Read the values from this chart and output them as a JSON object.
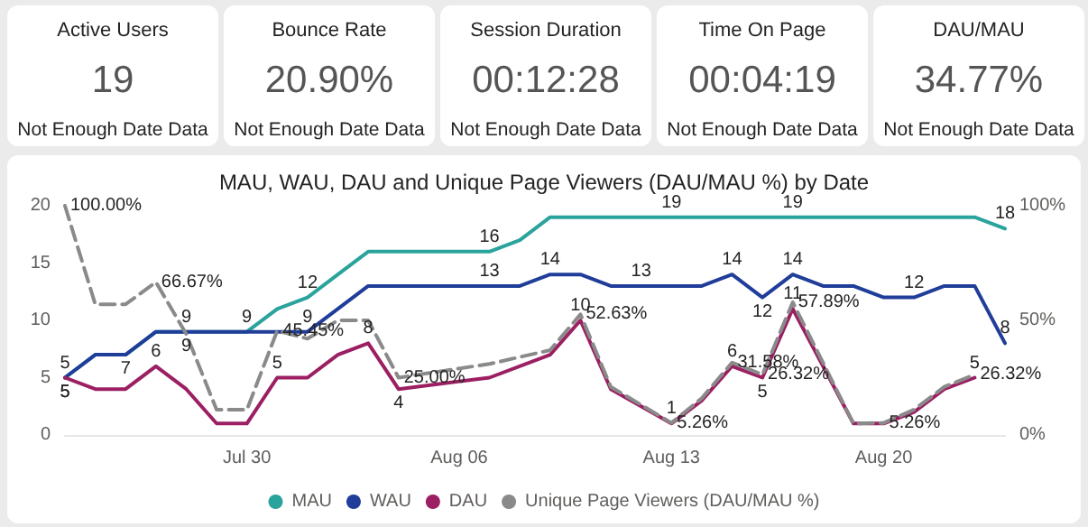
{
  "chart_data": [
    {
      "type": "other",
      "title": "Active Users",
      "annotations": [
        "19",
        "Not Enough Date Data"
      ]
    },
    {
      "type": "other",
      "title": "Bounce Rate",
      "annotations": [
        "20.90%",
        "Not Enough Date Data"
      ]
    },
    {
      "type": "other",
      "title": "Session Duration",
      "annotations": [
        "00:12:28",
        "Not Enough Date Data"
      ]
    },
    {
      "type": "other",
      "title": "Time On Page",
      "annotations": [
        "00:04:19",
        "Not Enough Date Data"
      ]
    },
    {
      "type": "other",
      "title": "DAU/MAU",
      "annotations": [
        "34.77%",
        "Not Enough Date Data"
      ]
    },
    {
      "type": "line",
      "title": "MAU, WAU, DAU and Unique Page Viewers (DAU/MAU %) by Date",
      "marker": "none",
      "legend": "bottom",
      "grid": false,
      "xlim": [
        "--07-24",
        "--08-24"
      ],
      "xticks": [
        {
          "value": "--07-30",
          "label": "Jul 30"
        },
        {
          "value": "--08-06",
          "label": "Aug 06"
        },
        {
          "value": "--08-13",
          "label": "Aug 13"
        },
        {
          "value": "--08-20",
          "label": "Aug 20"
        }
      ],
      "ylim": [
        0,
        20
      ],
      "yticks": [
        0,
        5,
        10,
        15,
        20
      ],
      "y2lim": [
        0,
        100
      ],
      "y2ticks": [
        {
          "value": 0,
          "label": "0%"
        },
        {
          "value": 50,
          "label": "50%"
        },
        {
          "value": 100,
          "label": "100%"
        }
      ],
      "series": [
        {
          "name": "MAU",
          "color": "#2aa39c",
          "line_style": "solid",
          "x": [
            "--07-24",
            "--07-25",
            "--07-26",
            "--07-27",
            "--07-28",
            "--07-29",
            "--07-30",
            "--07-31",
            "--08-01",
            "--08-02",
            "--08-03",
            "--08-06",
            "--08-07",
            "--08-08",
            "--08-09",
            "--08-13",
            "--08-17",
            "--08-23",
            "--08-24"
          ],
          "values": [
            5,
            7,
            7,
            9,
            9,
            9,
            9,
            11,
            12,
            14,
            16,
            16,
            16,
            17,
            19,
            19,
            19,
            19,
            18
          ],
          "value_labels": [
            "5",
            null,
            null,
            null,
            "9",
            null,
            "9",
            null,
            "12",
            null,
            null,
            null,
            "16",
            null,
            null,
            "19",
            "19",
            null,
            "18"
          ]
        },
        {
          "name": "WAU",
          "color": "#1f3d99",
          "line_style": "solid",
          "x": [
            "--07-24",
            "--07-25",
            "--07-26",
            "--07-27",
            "--07-28",
            "--07-31",
            "--08-01",
            "--08-03",
            "--08-07",
            "--08-08",
            "--08-09",
            "--08-10",
            "--08-11",
            "--08-12",
            "--08-14",
            "--08-15",
            "--08-16",
            "--08-17",
            "--08-18",
            "--08-19",
            "--08-20",
            "--08-21",
            "--08-22",
            "--08-23",
            "--08-24"
          ],
          "values": [
            5,
            7,
            7,
            9,
            9,
            9,
            9,
            13,
            13,
            13,
            14,
            14,
            13,
            13,
            13,
            14,
            12,
            14,
            13,
            13,
            12,
            12,
            13,
            13,
            8
          ],
          "value_labels": [
            "5",
            null,
            "7",
            null,
            "9",
            null,
            "9",
            null,
            "13",
            null,
            "14",
            null,
            null,
            "13",
            null,
            "14",
            "12",
            "14",
            null,
            null,
            null,
            "12",
            null,
            null,
            "8"
          ]
        },
        {
          "name": "DAU",
          "color": "#9b1f62",
          "line_style": "solid",
          "x": [
            "--07-24",
            "--07-25",
            "--07-26",
            "--07-27",
            "--07-28",
            "--07-29",
            "--07-30",
            "--07-31",
            "--08-01",
            "--08-02",
            "--08-03",
            "--08-04",
            "--08-07",
            "--08-09",
            "--08-10",
            "--08-11",
            "--08-13",
            "--08-14",
            "--08-15",
            "--08-16",
            "--08-17",
            "--08-19",
            "--08-20",
            "--08-21",
            "--08-22",
            "--08-23"
          ],
          "values": [
            5,
            4,
            4,
            6,
            4,
            1,
            1,
            5,
            5,
            7,
            8,
            4,
            5,
            7,
            10,
            4,
            1,
            3,
            6,
            5,
            11,
            1,
            1,
            2,
            4,
            5
          ],
          "value_labels": [
            "5",
            null,
            null,
            "6",
            null,
            null,
            null,
            "5",
            null,
            null,
            "8",
            "4",
            null,
            null,
            "10",
            null,
            "1",
            null,
            "6",
            "5",
            "11",
            null,
            null,
            null,
            null,
            "5"
          ]
        },
        {
          "name": "Unique Page Viewers (DAU/MAU %)",
          "color": "#8a8a8a",
          "line_style": "dashed",
          "axis": "y2",
          "x": [
            "--07-24",
            "--07-25",
            "--07-26",
            "--07-27",
            "--07-28",
            "--07-29",
            "--07-30",
            "--07-31",
            "--08-01",
            "--08-02",
            "--08-03",
            "--08-04",
            "--08-07",
            "--08-09",
            "--08-10",
            "--08-11",
            "--08-13",
            "--08-14",
            "--08-15",
            "--08-16",
            "--08-17",
            "--08-19",
            "--08-20",
            "--08-21",
            "--08-22",
            "--08-23"
          ],
          "values": [
            100,
            57,
            57,
            66.67,
            44,
            11,
            11,
            45.45,
            42,
            50,
            50,
            25,
            31,
            37,
            52.63,
            21,
            5.26,
            16,
            31.58,
            26.32,
            57.89,
            5,
            5.26,
            11,
            21,
            26.32
          ],
          "value_labels": [
            "100.00%",
            null,
            null,
            "66.67%",
            null,
            null,
            null,
            "45.45%",
            null,
            null,
            null,
            "25.00%",
            null,
            null,
            "52.63%",
            null,
            "5.26%",
            null,
            "31.58%",
            "26.32%",
            "57.89%",
            null,
            "5.26%",
            null,
            null,
            "26.32%"
          ]
        }
      ]
    }
  ]
}
